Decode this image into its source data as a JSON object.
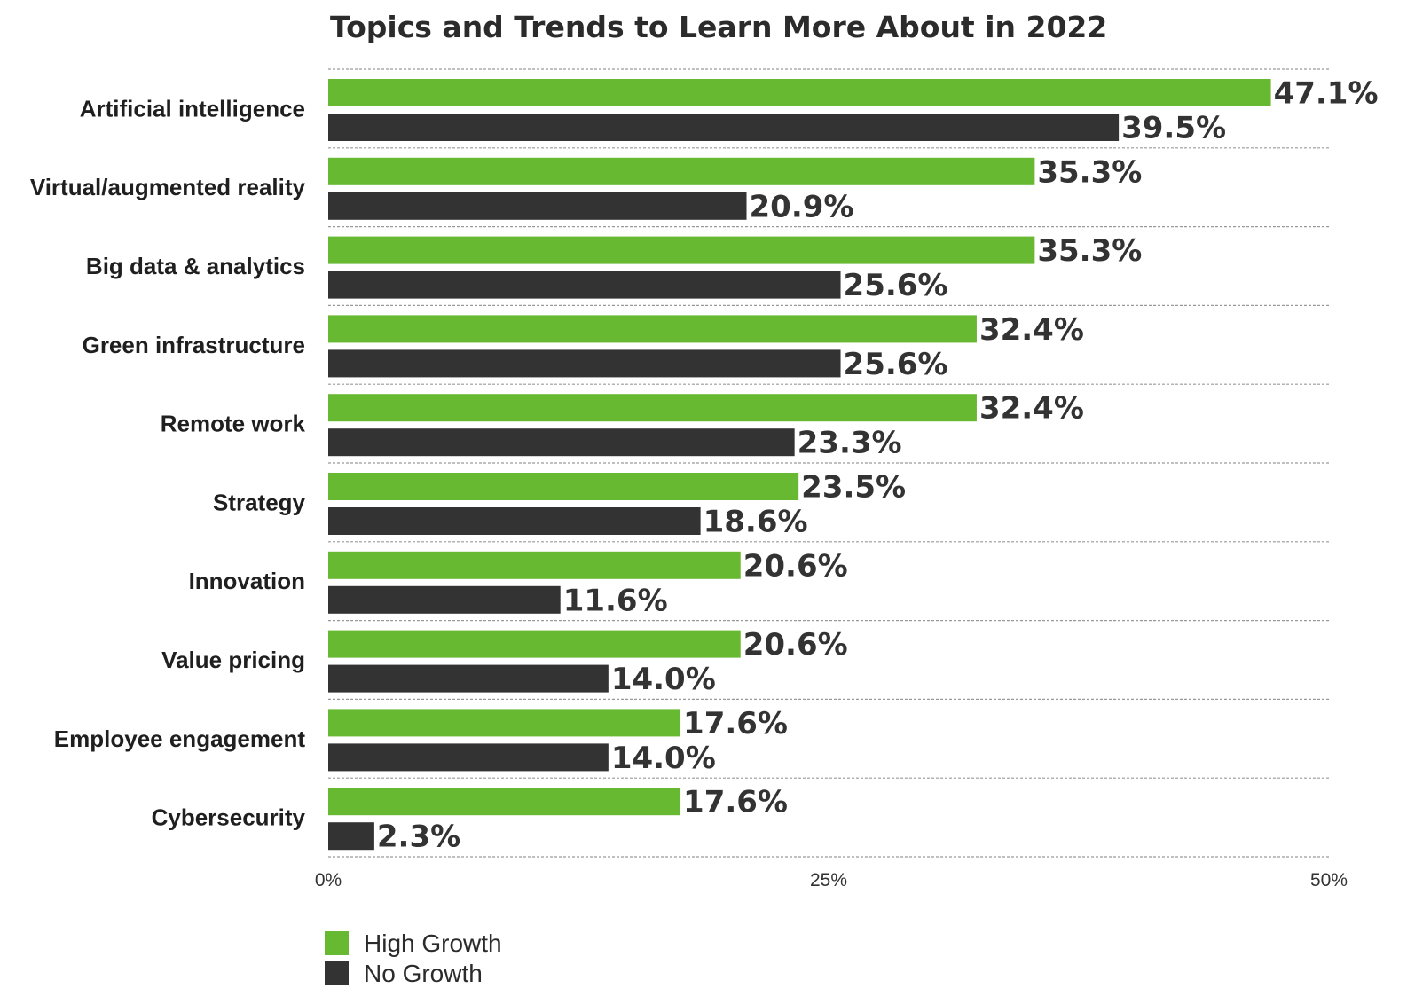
{
  "chart_data": {
    "type": "bar",
    "orientation": "horizontal",
    "title": "Topics and Trends to Learn More About in 2022",
    "categories": [
      "Artificial intelligence",
      "Virtual/augmented reality",
      "Big data & analytics",
      "Green infrastructure",
      "Remote work",
      "Strategy",
      "Innovation",
      "Value pricing",
      "Employee engagement",
      "Cybersecurity"
    ],
    "series": [
      {
        "name": "High Growth",
        "color": "#67b932",
        "values": [
          47.1,
          35.3,
          35.3,
          32.4,
          32.4,
          23.5,
          20.6,
          20.6,
          17.6,
          17.6
        ],
        "labels": [
          "47.1%",
          "35.3%",
          "35.3%",
          "32.4%",
          "32.4%",
          "23.5%",
          "20.6%",
          "20.6%",
          "17.6%",
          "17.6%"
        ]
      },
      {
        "name": "No Growth",
        "color": "#333333",
        "values": [
          39.5,
          20.9,
          25.6,
          25.6,
          23.3,
          18.6,
          11.6,
          14.0,
          14.0,
          2.3
        ],
        "labels": [
          "39.5%",
          "20.9%",
          "25.6%",
          "25.6%",
          "23.3%",
          "18.6%",
          "11.6%",
          "14.0%",
          "14.0%",
          "2.3%"
        ]
      }
    ],
    "xlim": [
      0,
      50
    ],
    "x_ticks": [
      0,
      25,
      50
    ],
    "x_tick_labels": [
      "0%",
      "25%",
      "50%"
    ],
    "grid": "horizontal dotted separators",
    "legend_position": "bottom-left"
  }
}
